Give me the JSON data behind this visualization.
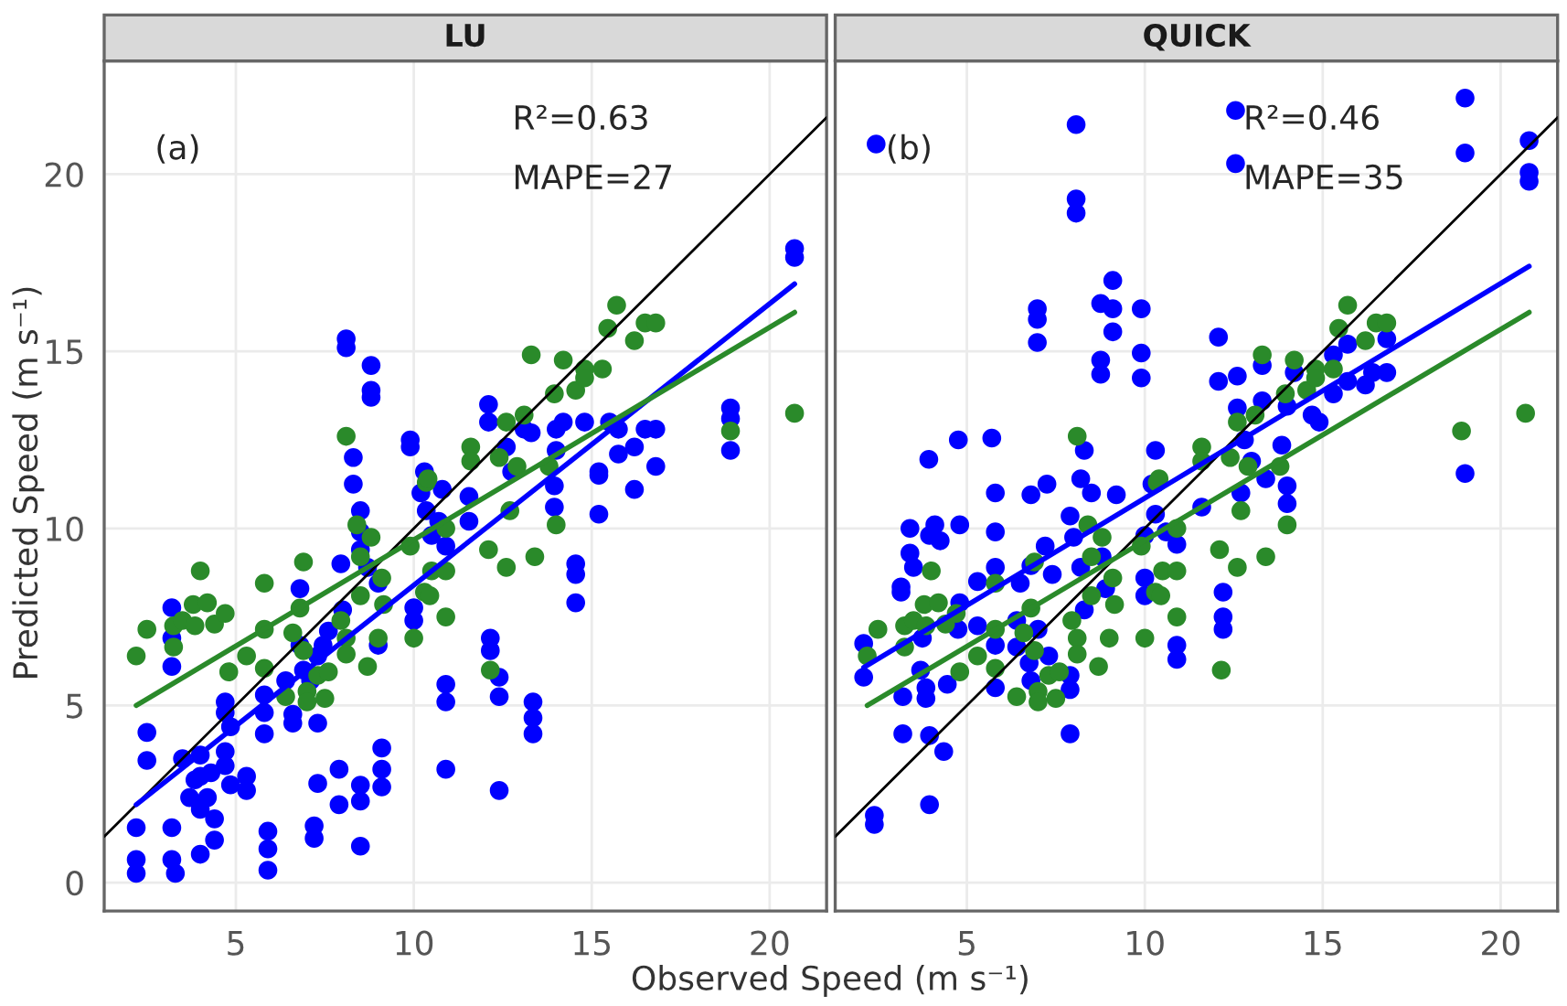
{
  "chart_data": [
    {
      "type": "scatter",
      "title": "LU",
      "xlabel": "Observed Speed (m s⁻¹)",
      "ylabel": "Predicted Speed (m s⁻¹)",
      "annotations": [
        "(a)",
        "R²=0.63",
        "MAPE=27"
      ],
      "xlim": [
        1.3,
        21.6
      ],
      "ylim": [
        -0.8,
        23.2
      ],
      "xticks": [
        5,
        10,
        15,
        20
      ],
      "yticks": [
        0,
        5,
        10,
        15,
        20
      ],
      "grid": true,
      "series": [
        {
          "marker": "circle",
          "color": "#0000ff",
          "x": [
            2.2,
            2.2,
            2.2,
            2.5,
            2.5,
            3.2,
            3.2,
            3.3,
            3.2,
            3.2,
            3.2,
            3.5,
            3.7,
            3.85,
            4.0,
            4.0,
            4.2,
            4.0,
            4.3,
            4.4,
            4.4,
            4.0,
            4.7,
            4.7,
            4.85,
            4.7,
            4.7,
            4.85,
            5.3,
            5.3,
            5.8,
            5.8,
            5.8,
            5.9,
            5.9,
            5.9,
            6.4,
            6.6,
            6.6,
            6.8,
            6.8,
            6.9,
            7.1,
            7.3,
            7.45,
            7.6,
            7.3,
            7.3,
            7.2,
            7.2,
            7.9,
            7.9,
            7.95,
            8.0,
            8.5,
            8.5,
            8.5,
            8.5,
            8.5,
            8.5,
            8.7,
            9.0,
            9.1,
            9.1,
            9.1,
            9.0,
            10.0,
            10.0,
            10.2,
            10.35,
            10.5,
            10.7,
            10.9,
            10.9,
            10.9,
            10.9,
            11.55,
            11.55,
            12.15,
            12.15,
            12.4,
            12.4,
            12.4,
            13.35,
            13.35,
            13.35,
            13.95,
            13.95,
            14.55,
            14.55,
            14.55,
            15.2,
            15.2,
            16.2,
            8.1,
            8.1,
            8.8,
            8.8,
            8.8,
            8.3,
            8.3,
            9.9,
            9.9,
            10.3,
            10.8,
            12.1,
            12.1,
            12.6,
            12.75,
            13.1,
            13.3,
            14.0,
            14.0,
            14.2,
            14.8,
            15.2,
            15.5,
            15.75,
            15.75,
            16.2,
            16.5,
            16.8,
            16.8,
            18.9,
            18.9,
            18.9,
            20.7,
            20.7
          ],
          "values": [
            1.55,
            0.65,
            0.26,
            4.24,
            3.45,
            1.55,
            0.65,
            0.26,
            7.76,
            6.9,
            6.1,
            3.5,
            2.4,
            2.9,
            3.0,
            2.07,
            2.4,
            3.6,
            3.1,
            1.8,
            1.2,
            0.8,
            5.1,
            4.8,
            4.4,
            3.7,
            3.3,
            2.76,
            3.0,
            2.6,
            5.3,
            4.8,
            4.2,
            1.45,
            0.95,
            0.35,
            5.7,
            4.75,
            4.5,
            8.3,
            6.7,
            6.0,
            5.7,
            6.4,
            6.7,
            7.1,
            4.5,
            2.8,
            1.6,
            1.25,
            3.2,
            2.2,
            9.0,
            7.7,
            10.5,
            9.9,
            9.4,
            2.75,
            2.3,
            1.03,
            8.9,
            8.45,
            3.8,
            3.2,
            2.7,
            6.7,
            7.76,
            7.4,
            11.0,
            10.5,
            9.8,
            10.2,
            9.5,
            5.6,
            5.1,
            3.2,
            10.2,
            10.9,
            6.9,
            6.55,
            5.8,
            5.25,
            2.6,
            5.1,
            4.65,
            4.2,
            11.2,
            10.6,
            9.0,
            8.7,
            7.9,
            11.5,
            10.4,
            11.1,
            15.35,
            15.1,
            14.6,
            13.9,
            13.7,
            12.0,
            11.25,
            12.5,
            12.3,
            11.6,
            11.1,
            13.5,
            13.0,
            12.3,
            11.6,
            12.8,
            12.7,
            12.2,
            12.8,
            13.0,
            13.0,
            11.6,
            13.0,
            12.8,
            12.1,
            12.3,
            12.8,
            12.8,
            11.75,
            13.4,
            13.1,
            12.2,
            17.9,
            17.65
          ]
        },
        {
          "marker": "circle",
          "color": "#2a8a2a",
          "x": [
            2.2,
            2.5,
            3.25,
            3.25,
            3.5,
            3.8,
            3.85,
            4.0,
            4.2,
            4.4,
            4.7,
            4.8,
            5.3,
            5.8,
            5.8,
            5.8,
            6.4,
            6.6,
            6.8,
            6.9,
            6.9,
            7.0,
            7.0,
            7.3,
            7.5,
            7.6,
            7.95,
            8.1,
            8.1,
            8.4,
            8.5,
            8.5,
            8.8,
            8.7,
            9.0,
            9.15,
            9.1,
            9.9,
            10.0,
            10.3,
            10.45,
            10.35,
            10.5,
            10.9,
            10.9,
            10.9,
            12.1,
            12.15,
            12.6,
            12.7,
            13.4,
            14.0,
            8.1,
            10.4,
            11.6,
            11.6,
            12.4,
            12.6,
            13.1,
            13.3,
            12.9,
            13.8,
            13.95,
            14.2,
            14.55,
            14.8,
            14.8,
            15.3,
            15.45,
            15.7,
            16.2,
            16.5,
            16.8,
            18.9,
            20.7
          ],
          "values": [
            6.4,
            7.15,
            6.65,
            7.25,
            7.4,
            7.85,
            7.25,
            8.8,
            7.9,
            7.3,
            7.6,
            5.95,
            6.4,
            8.45,
            7.15,
            6.05,
            5.25,
            7.05,
            7.75,
            9.05,
            6.55,
            5.4,
            5.1,
            5.85,
            5.2,
            5.95,
            7.4,
            6.9,
            6.45,
            10.1,
            9.2,
            8.1,
            9.75,
            6.1,
            6.9,
            7.85,
            8.6,
            9.5,
            6.9,
            8.2,
            8.1,
            11.3,
            8.8,
            8.8,
            7.5,
            10.0,
            9.4,
            6.0,
            8.9,
            10.5,
            9.2,
            10.1,
            12.6,
            11.4,
            12.3,
            11.9,
            12.0,
            13.0,
            13.2,
            14.9,
            11.75,
            11.75,
            13.8,
            14.75,
            13.9,
            14.5,
            14.25,
            14.5,
            15.65,
            16.3,
            15.3,
            15.8,
            15.8,
            12.75,
            13.25
          ]
        },
        {
          "type": "line",
          "color": "#000000",
          "x": [
            1.3,
            21.6
          ],
          "values": [
            1.3,
            21.6
          ]
        },
        {
          "type": "line",
          "color": "#0000ff",
          "x": [
            2.2,
            20.7
          ],
          "values": [
            2.2,
            16.9
          ]
        },
        {
          "type": "line",
          "color": "#2a8a2a",
          "x": [
            2.2,
            20.7
          ],
          "values": [
            5.0,
            16.1
          ]
        }
      ]
    },
    {
      "type": "scatter",
      "title": "QUICK",
      "annotations": [
        "(b)",
        "R²=0.46",
        "MAPE=35"
      ],
      "xlim": [
        1.3,
        21.6
      ],
      "ylim": [
        -0.8,
        23.2
      ],
      "xticks": [
        5,
        10,
        15,
        20
      ],
      "yticks": [
        0,
        5,
        10,
        15,
        20
      ],
      "tick_labels": "x",
      "grid": true,
      "series": [
        {
          "marker": "circle",
          "color": "#0000ff",
          "x": [
            2.1,
            2.1,
            2.4,
            2.4,
            3.15,
            3.15,
            3.2,
            3.2,
            3.4,
            3.4,
            3.5,
            3.7,
            3.75,
            3.85,
            3.85,
            3.95,
            3.95,
            3.95,
            4.1,
            4.25,
            4.35,
            4.45,
            4.8,
            4.75,
            4.8,
            5.3,
            5.3,
            5.8,
            5.8,
            5.8,
            5.8,
            5.8,
            6.4,
            6.4,
            6.5,
            6.8,
            6.8,
            6.75,
            6.8,
            7.0,
            7.2,
            7.25,
            7.3,
            7.4,
            7.9,
            7.9,
            7.9,
            7.9,
            8.0,
            8.2,
            8.2,
            8.3,
            8.5,
            8.8,
            8.9,
            9.2,
            10.0,
            10.0,
            10.0,
            10.2,
            10.3,
            10.6,
            10.9,
            10.9,
            10.9,
            11.6,
            12.2,
            12.2,
            12.2,
            12.7,
            13.4,
            14.0,
            14.0,
            19.0,
            2.45,
            8.07,
            8.07,
            8.07,
            6.98,
            6.98,
            6.98,
            9.1,
            8.76,
            9.1,
            9.1,
            9.9,
            9.9,
            9.9,
            8.76,
            8.76,
            12.55,
            12.55,
            19.0,
            19.0,
            20.8,
            20.8,
            20.8,
            12.07,
            12.07,
            12.6,
            12.6,
            13.3,
            13.3,
            14.2,
            14.0,
            14.7,
            14.9,
            15.3,
            15.3,
            15.7,
            15.7,
            16.2,
            16.8,
            16.8,
            16.4,
            4.76,
            5.7,
            3.93,
            8.3,
            10.3,
            12.8,
            13.0,
            13.85
          ],
          "values": [
            6.75,
            5.8,
            1.9,
            1.64,
            8.2,
            8.35,
            4.2,
            5.25,
            10.0,
            9.3,
            8.9,
            6.0,
            6.9,
            5.5,
            5.2,
            4.15,
            2.2,
            9.8,
            10.1,
            9.65,
            3.7,
            5.6,
            10.1,
            7.15,
            7.9,
            8.5,
            7.25,
            11.0,
            9.9,
            8.9,
            6.7,
            5.5,
            7.4,
            6.65,
            8.45,
            10.95,
            8.95,
            6.2,
            5.7,
            7.15,
            9.5,
            11.25,
            6.4,
            8.7,
            10.35,
            5.85,
            5.45,
            4.2,
            9.75,
            11.4,
            8.9,
            7.7,
            11.0,
            9.2,
            8.3,
            10.95,
            9.8,
            8.6,
            8.1,
            11.25,
            10.4,
            9.9,
            9.55,
            6.7,
            6.3,
            10.6,
            8.2,
            7.5,
            7.15,
            11.0,
            11.4,
            11.2,
            10.7,
            11.55,
            20.85,
            21.4,
            19.3,
            18.9,
            16.2,
            15.9,
            15.25,
            17.0,
            16.35,
            16.2,
            15.55,
            16.2,
            14.95,
            14.25,
            14.75,
            14.35,
            21.8,
            20.3,
            22.15,
            20.6,
            20.95,
            20.05,
            19.8,
            15.4,
            14.15,
            14.3,
            13.4,
            14.6,
            13.6,
            14.4,
            13.45,
            13.2,
            13.0,
            14.9,
            13.8,
            15.2,
            14.15,
            14.05,
            15.35,
            14.4,
            14.4,
            12.5,
            12.55,
            11.95,
            12.2,
            12.2,
            12.5,
            11.9,
            12.35
          ]
        },
        {
          "marker": "circle",
          "color": "#2a8a2a",
          "x": [
            2.2,
            2.5,
            3.25,
            3.25,
            3.5,
            3.8,
            3.85,
            4.0,
            4.2,
            4.4,
            4.7,
            4.8,
            5.3,
            5.8,
            5.8,
            5.8,
            6.4,
            6.6,
            6.8,
            6.9,
            6.9,
            7.0,
            7.0,
            7.3,
            7.5,
            7.6,
            7.95,
            8.1,
            8.1,
            8.4,
            8.5,
            8.5,
            8.8,
            8.7,
            9.0,
            9.15,
            9.1,
            9.9,
            10.0,
            10.3,
            10.45,
            10.35,
            10.5,
            10.9,
            10.9,
            10.9,
            12.1,
            12.15,
            12.6,
            12.7,
            13.4,
            14.0,
            8.1,
            10.4,
            11.6,
            11.6,
            12.4,
            12.6,
            13.1,
            13.3,
            12.9,
            13.8,
            13.95,
            14.2,
            14.55,
            14.8,
            14.8,
            15.3,
            15.45,
            15.7,
            16.2,
            16.5,
            16.8,
            18.9,
            20.7
          ],
          "values": [
            6.4,
            7.15,
            6.65,
            7.25,
            7.4,
            7.85,
            7.25,
            8.8,
            7.9,
            7.3,
            7.6,
            5.95,
            6.4,
            8.45,
            7.15,
            6.05,
            5.25,
            7.05,
            7.75,
            9.05,
            6.55,
            5.4,
            5.1,
            5.85,
            5.2,
            5.95,
            7.4,
            6.9,
            6.45,
            10.1,
            9.2,
            8.1,
            9.75,
            6.1,
            6.9,
            7.85,
            8.6,
            9.5,
            6.9,
            8.2,
            8.1,
            11.3,
            8.8,
            8.8,
            7.5,
            10.0,
            9.4,
            6.0,
            8.9,
            10.5,
            9.2,
            10.1,
            12.6,
            11.4,
            12.3,
            11.9,
            12.0,
            13.0,
            13.2,
            14.9,
            11.75,
            11.75,
            13.8,
            14.75,
            13.9,
            14.5,
            14.25,
            14.5,
            15.65,
            16.3,
            15.3,
            15.8,
            15.8,
            12.75,
            13.25
          ]
        },
        {
          "type": "line",
          "color": "#000000",
          "x": [
            1.3,
            21.6
          ],
          "values": [
            1.3,
            21.6
          ]
        },
        {
          "type": "line",
          "color": "#0000ff",
          "x": [
            2.1,
            20.8
          ],
          "values": [
            6.07,
            17.4
          ]
        },
        {
          "type": "line",
          "color": "#2a8a2a",
          "x": [
            2.2,
            20.8
          ],
          "values": [
            5.0,
            16.1
          ]
        }
      ]
    }
  ]
}
